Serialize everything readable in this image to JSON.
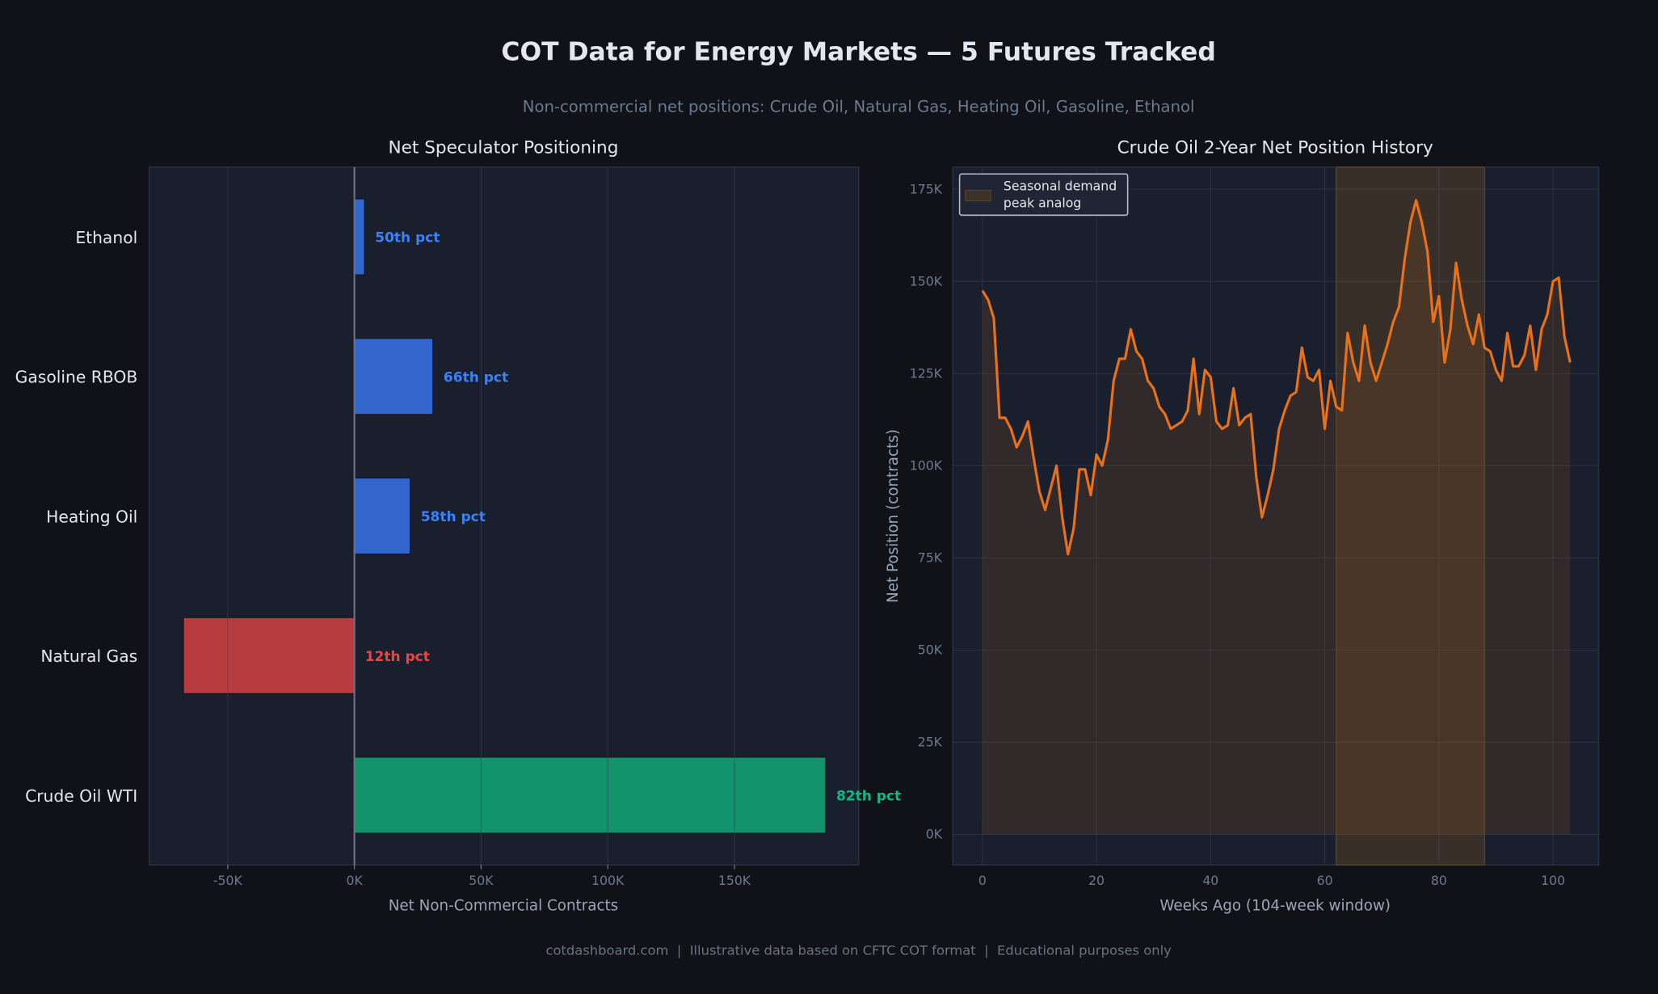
{
  "title": "COT Data for Energy Markets — 5 Futures Tracked",
  "subtitle": "Non-commercial net positions: Crude Oil, Natural Gas, Heating Oil, Gasoline, Ethanol",
  "footer": "cotdashboard.com  |  Illustrative data based on CFTC COT format  |  Educational purposes only",
  "colors": {
    "background": "#111217",
    "panel": "#1a1f2d",
    "line": "#e8711a",
    "shade": "#8a5a20"
  },
  "chart_data": [
    {
      "type": "bar",
      "orientation": "horizontal",
      "title": "Net Speculator Positioning",
      "xlabel": "Net Non-Commercial Contracts",
      "ylabel": "",
      "xlim": [
        -81000,
        199000
      ],
      "grid": true,
      "xticks": [
        -50000,
        0,
        50000,
        100000,
        150000
      ],
      "xtick_labels": [
        "-50K",
        "0K",
        "50K",
        "100K",
        "150K"
      ],
      "categories": [
        "Ethanol",
        "Gasoline RBOB",
        "Heating Oil",
        "Natural Gas",
        "Crude Oil WTI"
      ],
      "values": [
        4000,
        31000,
        22000,
        -67500,
        186000
      ],
      "data_labels": [
        "50th pct",
        "66th pct",
        "58th pct",
        "12th pct",
        "82th pct"
      ],
      "bar_colors": [
        "#3366cc",
        "#3366cc",
        "#3366cc",
        "#b83b40",
        "#13936b"
      ],
      "label_colors": [
        "#3b82f6",
        "#3b82f6",
        "#3b82f6",
        "#ef4444",
        "#10b981"
      ]
    },
    {
      "type": "area",
      "title": "Crude Oil 2-Year Net Position History",
      "xlabel": "Weeks Ago (104-week window)",
      "ylabel": "Net Position (contracts)",
      "xlim": [
        -5.2,
        108
      ],
      "ylim": [
        -8300,
        181000
      ],
      "grid": true,
      "xticks": [
        0,
        20,
        40,
        60,
        80,
        100
      ],
      "xtick_labels": [
        "0",
        "20",
        "40",
        "60",
        "80",
        "100"
      ],
      "yticks": [
        0,
        25000,
        50000,
        75000,
        100000,
        125000,
        150000,
        175000
      ],
      "ytick_labels": [
        "0K",
        "25K",
        "50K",
        "75K",
        "100K",
        "125K",
        "150K",
        "175K"
      ],
      "legend": {
        "position": "top-left",
        "entries": [
          "Seasonal demand\npeak analog"
        ],
        "lines": [
          "Seasonal demand",
          "peak analog"
        ]
      },
      "shaded_span": [
        62,
        88
      ],
      "x": [
        0,
        1,
        2,
        3,
        4,
        5,
        6,
        7,
        8,
        9,
        10,
        11,
        12,
        13,
        14,
        15,
        16,
        17,
        18,
        19,
        20,
        21,
        22,
        23,
        24,
        25,
        26,
        27,
        28,
        29,
        30,
        31,
        32,
        33,
        34,
        35,
        36,
        37,
        38,
        39,
        40,
        41,
        42,
        43,
        44,
        45,
        46,
        47,
        48,
        49,
        50,
        51,
        52,
        53,
        54,
        55,
        56,
        57,
        58,
        59,
        60,
        61,
        62,
        63,
        64,
        65,
        66,
        67,
        68,
        69,
        70,
        71,
        72,
        73,
        74,
        75,
        76,
        77,
        78,
        79,
        80,
        81,
        82,
        83,
        84,
        85,
        86,
        87,
        88,
        89,
        90,
        91,
        92,
        93,
        94,
        95,
        96,
        97,
        98,
        99,
        100,
        101,
        102,
        103
      ],
      "y": [
        147500,
        145000,
        140000,
        113000,
        113000,
        110000,
        105000,
        108000,
        112000,
        102000,
        93000,
        88000,
        94000,
        100000,
        86000,
        76000,
        83000,
        99000,
        99000,
        92000,
        103000,
        100000,
        107000,
        123000,
        129000,
        129000,
        137000,
        131000,
        129000,
        123000,
        121000,
        116000,
        114000,
        110000,
        111000,
        112000,
        115000,
        129000,
        114000,
        126000,
        124000,
        112000,
        110000,
        111000,
        121000,
        111000,
        113000,
        114000,
        97000,
        86000,
        92000,
        99000,
        110000,
        115000,
        119000,
        120000,
        132000,
        124000,
        123000,
        126000,
        110000,
        123000,
        116000,
        115000,
        136000,
        128000,
        123000,
        138000,
        128000,
        123000,
        128000,
        133000,
        139000,
        143000,
        156000,
        166000,
        172000,
        166000,
        158000,
        139000,
        146000,
        128000,
        137000,
        155000,
        145000,
        138000,
        133000,
        141000,
        132000,
        131000,
        126000,
        123000,
        136000,
        127000,
        127000,
        130000,
        138000,
        126000,
        137000,
        141000,
        150000,
        151000,
        135000,
        128000
      ]
    }
  ]
}
